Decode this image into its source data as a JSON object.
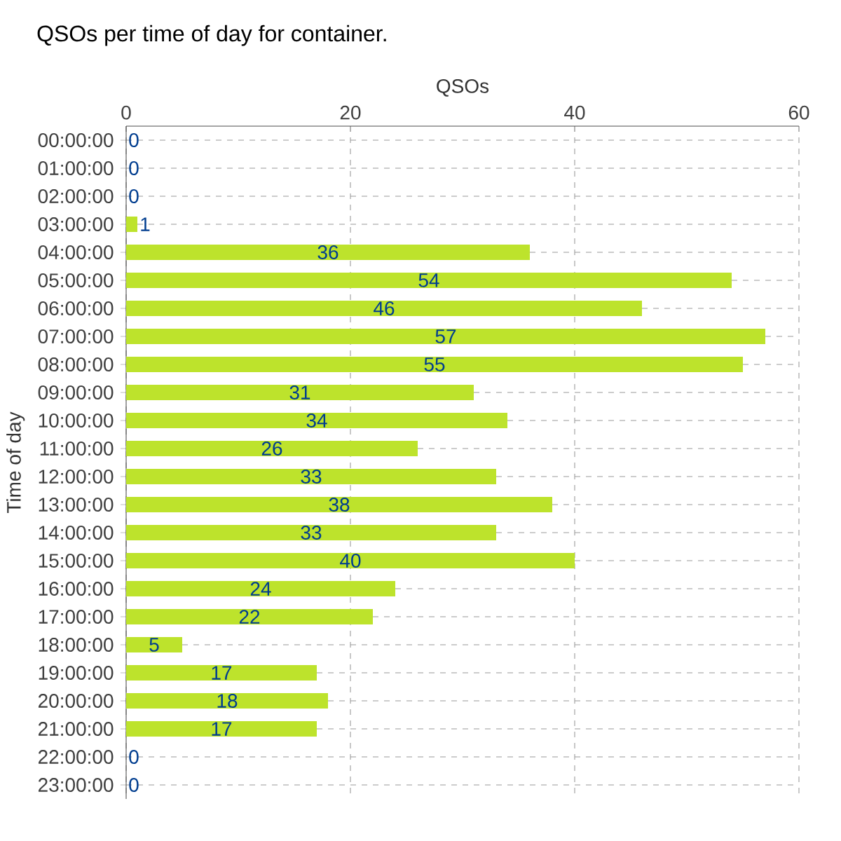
{
  "chart_data": {
    "type": "bar",
    "orientation": "horizontal",
    "title": "QSOs per time of day for container.",
    "xlabel": "QSOs",
    "ylabel": "Time of day",
    "categories": [
      "00:00:00",
      "01:00:00",
      "02:00:00",
      "03:00:00",
      "04:00:00",
      "05:00:00",
      "06:00:00",
      "07:00:00",
      "08:00:00",
      "09:00:00",
      "10:00:00",
      "11:00:00",
      "12:00:00",
      "13:00:00",
      "14:00:00",
      "15:00:00",
      "16:00:00",
      "17:00:00",
      "18:00:00",
      "19:00:00",
      "20:00:00",
      "21:00:00",
      "22:00:00",
      "23:00:00"
    ],
    "values": [
      0,
      0,
      0,
      1,
      36,
      54,
      46,
      57,
      55,
      31,
      34,
      26,
      33,
      38,
      33,
      40,
      24,
      22,
      5,
      17,
      18,
      17,
      0,
      0
    ],
    "color": "#bde32c",
    "xlim": [
      0,
      60
    ],
    "xticks": [
      0,
      20,
      40,
      60
    ],
    "grid": true,
    "data_labels": true
  }
}
